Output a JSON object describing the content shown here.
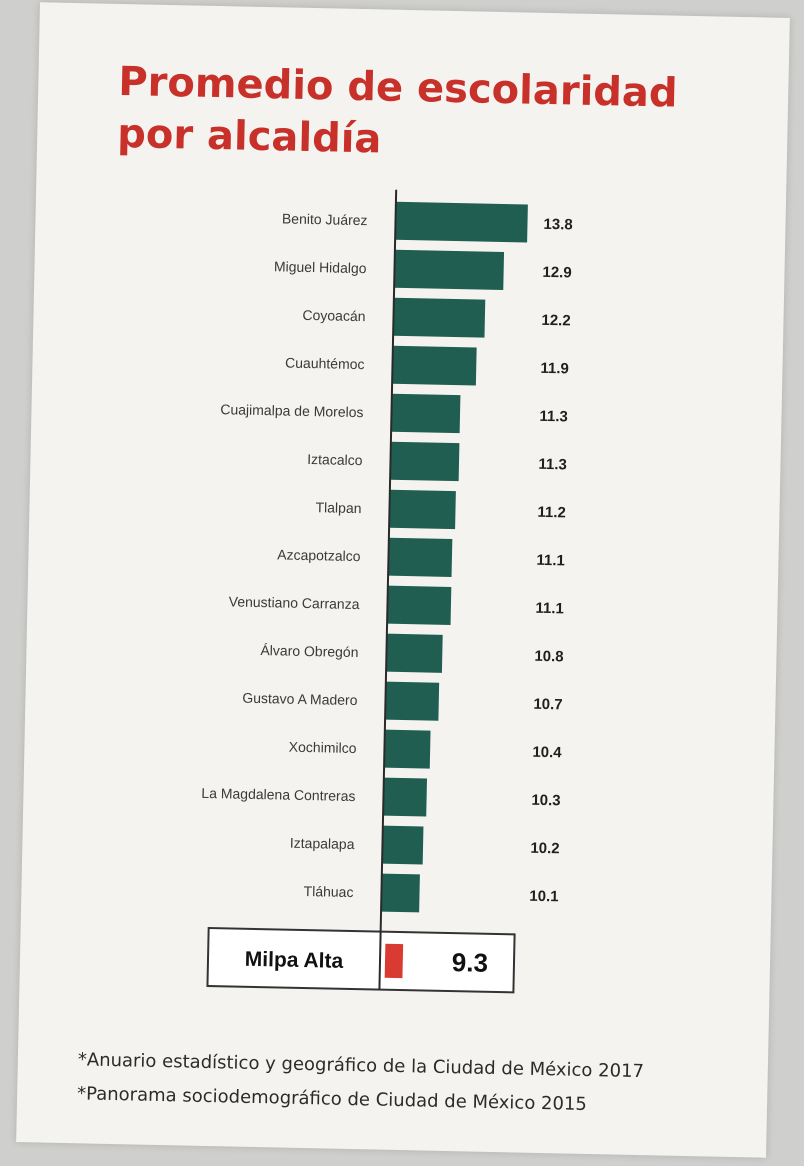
{
  "title": "Promedio de escolaridad por alcaldía",
  "chart_data": {
    "type": "bar",
    "orientation": "horizontal",
    "title": "Promedio de escolaridad por alcaldía",
    "categories": [
      "Benito Juárez",
      "Miguel Hidalgo",
      "Coyoacán",
      "Cuauhtémoc",
      "Cuajimalpa de Morelos",
      "Iztacalco",
      "Tlalpan",
      "Azcapotzalco",
      "Venustiano Carranza",
      "Álvaro Obregón",
      "Gustavo A Madero",
      "Xochimilco",
      "La Magdalena Contreras",
      "Iztapalapa",
      "Tláhuac"
    ],
    "values": [
      13.8,
      12.9,
      12.2,
      11.9,
      11.3,
      11.3,
      11.2,
      11.1,
      11.1,
      10.8,
      10.7,
      10.4,
      10.3,
      10.2,
      10.1
    ],
    "value_labels": [
      "13.8",
      "12.9",
      "12.2",
      "11.9",
      "11.3",
      "11.3",
      "11.2",
      "11.1",
      "11.1",
      "10.8",
      "10.7",
      "10.4",
      "10.3",
      "10.2",
      "10.1"
    ],
    "highlight": {
      "category": "Milpa Alta",
      "value": 9.3,
      "value_label": "9.3"
    },
    "bar_color": "#1f5e50",
    "highlight_color": "#d93a31",
    "xlim": [
      0,
      15
    ],
    "grid": false,
    "legend": "none"
  },
  "footnotes": [
    "*Anuario estadístico y geográfico de la Ciudad de México 2017",
    "*Panorama sociodemográfico de Ciudad de México 2015"
  ],
  "colors": {
    "title": "#c8302a",
    "paper": "#f4f3ef",
    "background": "#cfcfcd"
  }
}
